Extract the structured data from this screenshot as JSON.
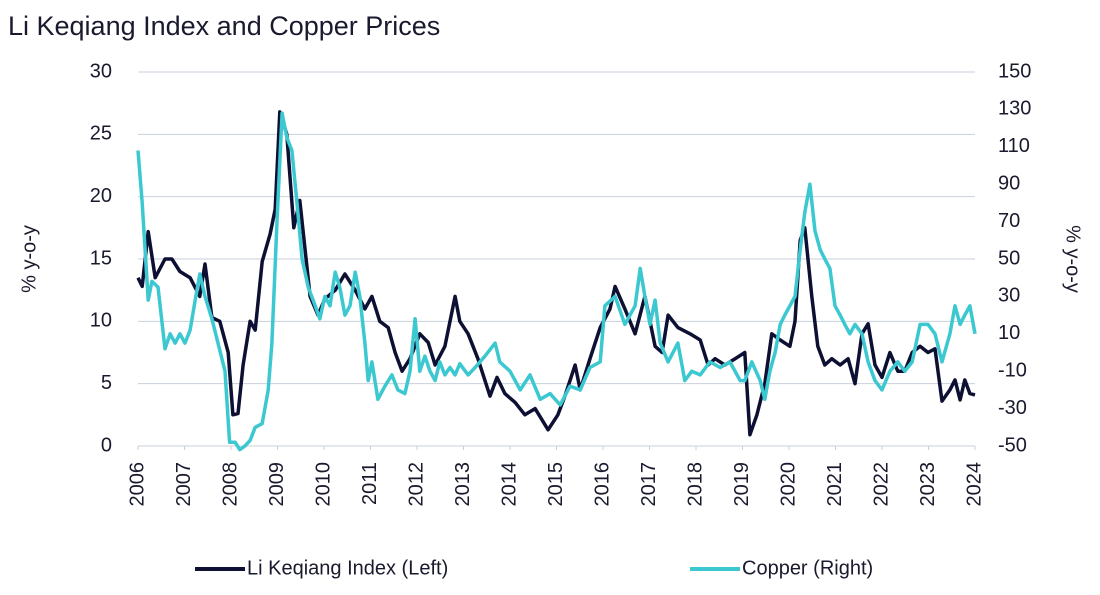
{
  "chart_data": {
    "type": "line",
    "title": "Li Keqiang Index and Copper Prices",
    "ylabel": "% y-o-y",
    "y2label": "% y-o-y",
    "xlim": [
      2006,
      2024
    ],
    "xticks": [
      2006,
      2007,
      2008,
      2009,
      2010,
      2011,
      2012,
      2013,
      2014,
      2015,
      2016,
      2017,
      2018,
      2019,
      2020,
      2021,
      2022,
      2023,
      2024
    ],
    "ylim": [
      0,
      30
    ],
    "yticks": [
      0,
      5,
      10,
      15,
      20,
      25,
      30
    ],
    "y2lim": [
      -50,
      150
    ],
    "y2ticks": [
      -50,
      -30,
      -10,
      10,
      30,
      50,
      70,
      90,
      110,
      130,
      150
    ],
    "grid": true,
    "series": [
      {
        "name": "Li Keqiang Index (Left)",
        "color": "#0d1033",
        "axis": "y",
        "x": [
          2006.0,
          2006.09,
          2006.22,
          2006.37,
          2006.58,
          2006.73,
          2006.9,
          2007.12,
          2007.33,
          2007.44,
          2007.59,
          2007.76,
          2007.94,
          2008.04,
          2008.15,
          2008.26,
          2008.41,
          2008.52,
          2008.67,
          2008.84,
          2008.95,
          2009.05,
          2009.2,
          2009.35,
          2009.48,
          2009.7,
          2009.87,
          2010.02,
          2010.24,
          2010.45,
          2010.67,
          2010.88,
          2011.03,
          2011.2,
          2011.38,
          2011.53,
          2011.68,
          2011.85,
          2012.06,
          2012.24,
          2012.39,
          2012.6,
          2012.82,
          2012.92,
          2013.1,
          2013.31,
          2013.57,
          2013.72,
          2013.89,
          2014.11,
          2014.32,
          2014.54,
          2014.82,
          2015.03,
          2015.18,
          2015.4,
          2015.51,
          2015.72,
          2015.94,
          2016.15,
          2016.26,
          2016.47,
          2016.69,
          2016.9,
          2017.12,
          2017.27,
          2017.4,
          2017.61,
          2017.87,
          2018.09,
          2018.26,
          2018.41,
          2018.62,
          2018.84,
          2019.05,
          2019.16,
          2019.31,
          2019.48,
          2019.63,
          2019.81,
          2020.02,
          2020.13,
          2020.24,
          2020.34,
          2020.49,
          2020.62,
          2020.77,
          2020.92,
          2021.1,
          2021.27,
          2021.42,
          2021.57,
          2021.7,
          2021.85,
          2022.0,
          2022.17,
          2022.34,
          2022.49,
          2022.65,
          2022.82,
          2022.99,
          2023.14,
          2023.29,
          2023.46,
          2023.57,
          2023.68,
          2023.78,
          2023.89,
          2024.0
        ],
        "values": [
          13.5,
          12.8,
          17.2,
          13.5,
          15,
          15,
          14,
          13.5,
          12,
          14.6,
          10.3,
          10,
          7.5,
          2.5,
          2.6,
          6.5,
          10,
          9.3,
          14.8,
          17,
          19,
          26.8,
          25,
          17.5,
          19.7,
          12,
          10.5,
          11.8,
          12.5,
          13.8,
          12.5,
          11,
          12,
          10,
          9.5,
          7.5,
          6,
          7,
          9,
          8.3,
          6.5,
          8,
          12,
          10,
          9,
          7,
          4,
          5.5,
          4.2,
          3.5,
          2.5,
          3,
          1.3,
          2.5,
          4,
          6.5,
          4.5,
          7,
          9.5,
          11,
          12.8,
          11,
          9,
          12,
          8,
          7.5,
          10.5,
          9.5,
          9,
          8.5,
          6.5,
          7,
          6.5,
          7,
          7.5,
          0.9,
          2.5,
          5,
          9,
          8.5,
          8,
          10,
          16.5,
          17.5,
          12,
          8,
          6.5,
          7,
          6.5,
          7,
          5,
          9,
          9.8,
          6.5,
          5.5,
          7.5,
          6,
          6,
          7.5,
          8,
          7.5,
          7.8,
          3.6,
          4.5,
          5.3,
          3.7,
          5.3,
          4.2,
          4.1
        ]
      },
      {
        "name": "Copper (Right)",
        "color": "#3cc8d0",
        "axis": "y2",
        "x": [
          2006.0,
          2006.09,
          2006.22,
          2006.3,
          2006.43,
          2006.58,
          2006.69,
          2006.8,
          2006.9,
          2007.01,
          2007.12,
          2007.23,
          2007.33,
          2007.44,
          2007.59,
          2007.72,
          2007.87,
          2007.97,
          2008.09,
          2008.19,
          2008.3,
          2008.41,
          2008.52,
          2008.67,
          2008.8,
          2008.88,
          2008.99,
          2009.1,
          2009.2,
          2009.31,
          2009.42,
          2009.53,
          2009.66,
          2009.81,
          2009.91,
          2010.02,
          2010.13,
          2010.24,
          2010.34,
          2010.45,
          2010.56,
          2010.67,
          2010.77,
          2010.88,
          2010.95,
          2011.03,
          2011.16,
          2011.31,
          2011.46,
          2011.59,
          2011.74,
          2011.85,
          2011.96,
          2012.06,
          2012.17,
          2012.28,
          2012.39,
          2012.49,
          2012.6,
          2012.71,
          2012.82,
          2012.92,
          2013.1,
          2013.25,
          2013.46,
          2013.68,
          2013.78,
          2014.0,
          2014.22,
          2014.43,
          2014.65,
          2014.86,
          2015.08,
          2015.29,
          2015.51,
          2015.72,
          2015.94,
          2016.04,
          2016.26,
          2016.47,
          2016.69,
          2016.8,
          2016.9,
          2017.01,
          2017.12,
          2017.23,
          2017.4,
          2017.61,
          2017.76,
          2017.91,
          2018.09,
          2018.3,
          2018.52,
          2018.73,
          2018.95,
          2019.05,
          2019.2,
          2019.38,
          2019.48,
          2019.59,
          2019.7,
          2019.81,
          2019.91,
          2020.13,
          2020.24,
          2020.34,
          2020.45,
          2020.56,
          2020.67,
          2020.77,
          2020.88,
          2020.99,
          2021.1,
          2021.2,
          2021.31,
          2021.42,
          2021.57,
          2021.7,
          2021.85,
          2022.0,
          2022.17,
          2022.34,
          2022.49,
          2022.65,
          2022.82,
          2022.99,
          2023.14,
          2023.29,
          2023.46,
          2023.57,
          2023.68,
          2023.78,
          2023.89,
          2024.0
        ],
        "values": [
          108,
          80,
          28,
          38,
          35,
          2,
          10,
          5,
          10,
          5,
          12,
          28,
          42,
          30,
          18,
          5,
          -10,
          -48,
          -48,
          -52,
          -50,
          -47,
          -40,
          -38,
          -20,
          5,
          70,
          128,
          115,
          108,
          80,
          50,
          35,
          25,
          18,
          30,
          25,
          43,
          35,
          20,
          25,
          43,
          30,
          5,
          -15,
          -5,
          -25,
          -18,
          -12,
          -20,
          -22,
          -10,
          18,
          -10,
          -2,
          -10,
          -15,
          -5,
          -12,
          -8,
          -12,
          -6,
          -12,
          -8,
          -2,
          5,
          -5,
          -10,
          -20,
          -12,
          -25,
          -22,
          -28,
          -18,
          -20,
          -8,
          -5,
          25,
          30,
          15,
          25,
          45,
          30,
          15,
          28,
          5,
          -5,
          5,
          -15,
          -10,
          -12,
          -5,
          -8,
          -5,
          -15,
          -15,
          -5,
          -15,
          -25,
          -10,
          0,
          15,
          20,
          30,
          55,
          75,
          90,
          65,
          55,
          50,
          45,
          25,
          20,
          15,
          10,
          15,
          10,
          -5,
          -15,
          -20,
          -10,
          -5,
          -10,
          -5,
          15,
          15,
          10,
          -5,
          10,
          25,
          15,
          20,
          25,
          10
        ]
      }
    ]
  }
}
